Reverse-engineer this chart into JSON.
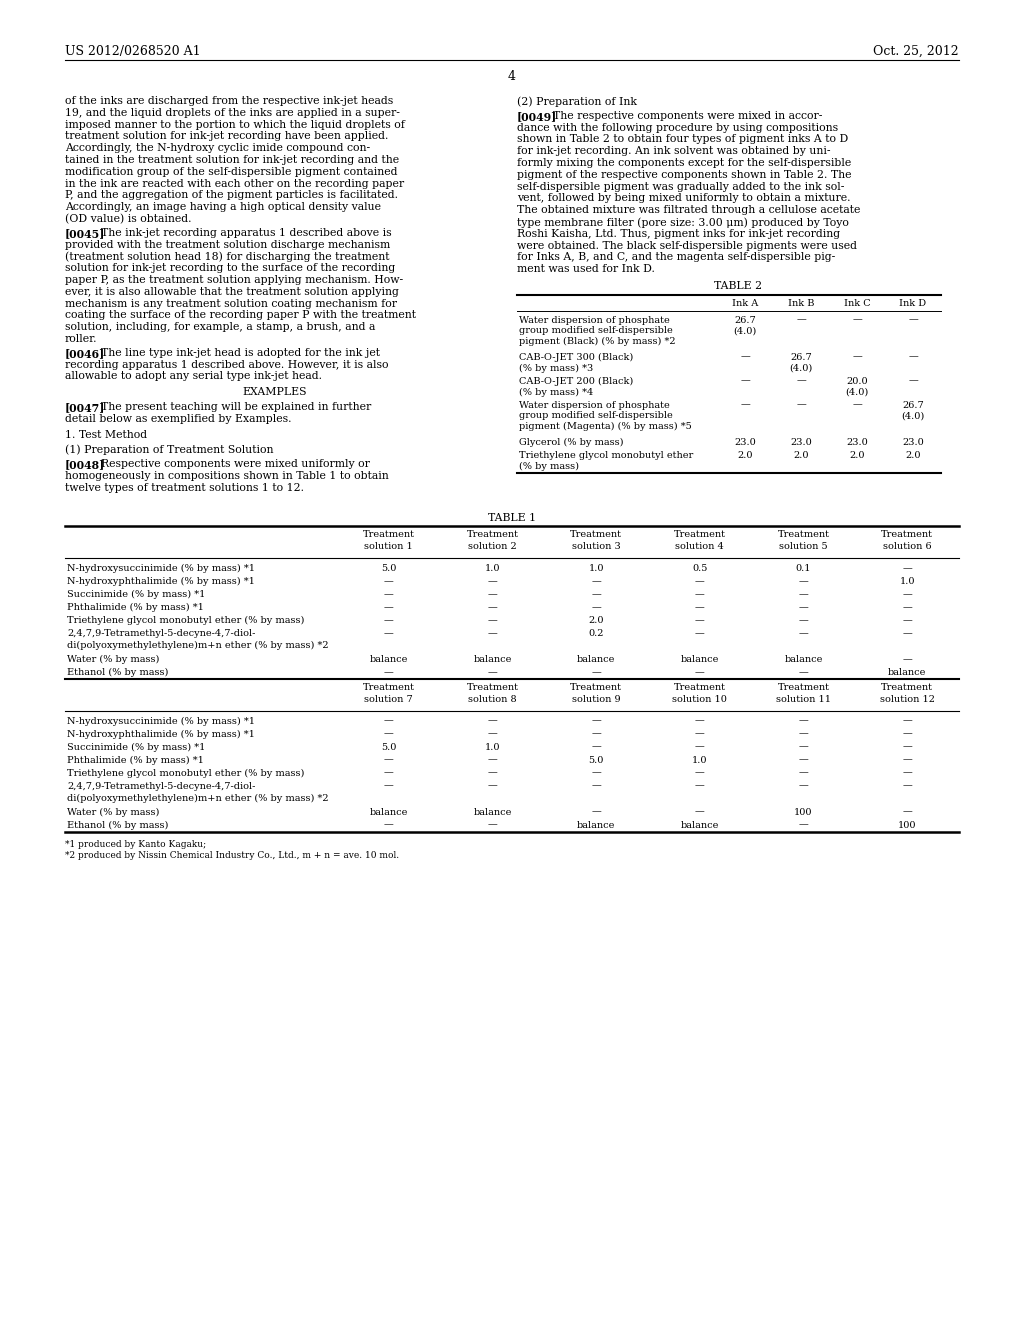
{
  "bg_color": "#ffffff",
  "header_left": "US 2012/0268520 A1",
  "header_right": "Oct. 25, 2012",
  "page_number": "4",
  "footnotes": [
    "*1 produced by Kanto Kagaku;",
    "*2 produced by Nissin Chemical Industry Co., Ltd., m + n = ave. 10 mol."
  ]
}
